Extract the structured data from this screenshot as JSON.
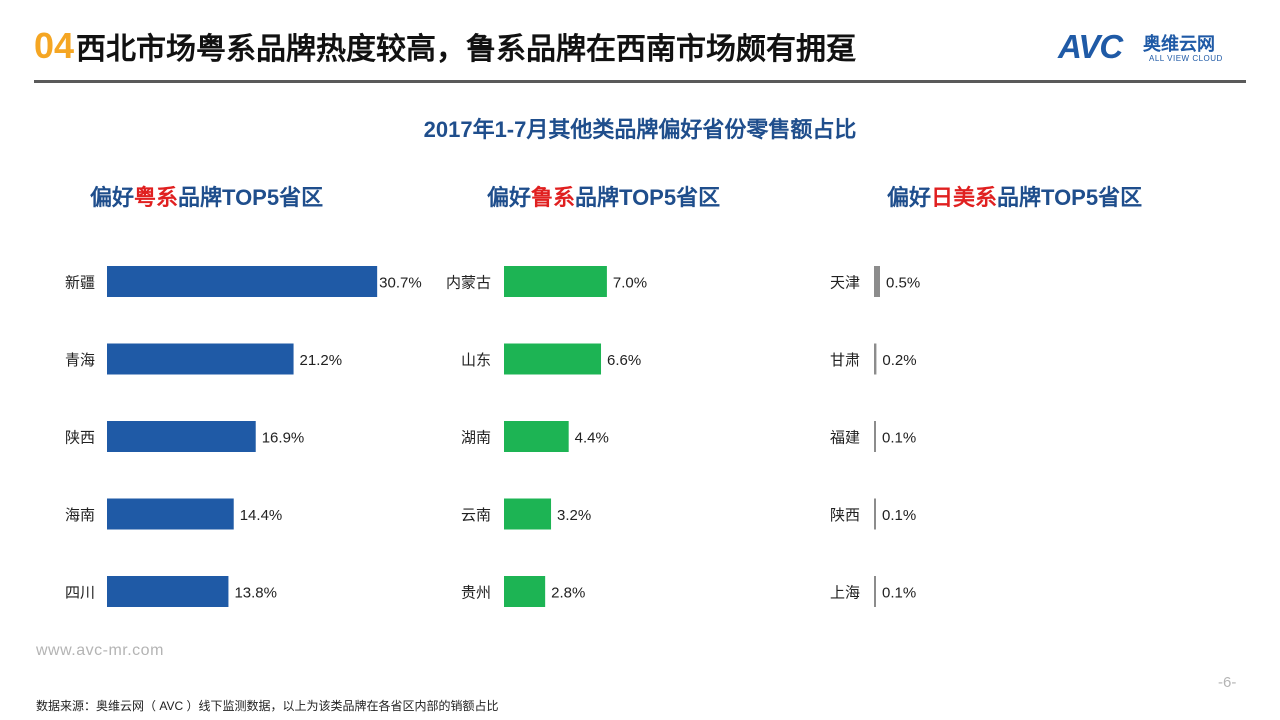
{
  "header": {
    "number": "04",
    "title": "西北市场粤系品牌热度较高，鲁系品牌在西南市场颇有拥趸"
  },
  "logo": {
    "brand": "AVC",
    "cn": "奥维云网",
    "en": "ALL VIEW CLOUD"
  },
  "colors": {
    "blue": "#1f4e8c",
    "green": "#1db454",
    "gray": "#8c8c8c",
    "highlight": "#e02020",
    "accent": "#f5a623"
  },
  "panels": [
    {
      "prefix": "偏好",
      "highlight": "粤系",
      "suffix": "品牌TOP5省区"
    },
    {
      "prefix": "偏好",
      "highlight": "鲁系",
      "suffix": "品牌TOP5省区"
    },
    {
      "prefix": "偏好",
      "highlight": "日美系",
      "suffix": "品牌TOP5省区"
    }
  ],
  "chart_data": {
    "title": "2017年1-7月其他类品牌偏好省份零售额占比",
    "charts": [
      {
        "type": "bar",
        "orientation": "horizontal",
        "title": "偏好粤系品牌TOP5省区",
        "categories": [
          "新疆",
          "青海",
          "陕西",
          "海南",
          "四川"
        ],
        "values": [
          30.7,
          21.2,
          16.9,
          14.4,
          13.8
        ],
        "labels": [
          "30.7%",
          "21.2%",
          "16.9%",
          "14.4%",
          "13.8%"
        ],
        "unit": "%",
        "color": "#1f5aa6"
      },
      {
        "type": "bar",
        "orientation": "horizontal",
        "title": "偏好鲁系品牌TOP5省区",
        "categories": [
          "内蒙古",
          "山东",
          "湖南",
          "云南",
          "贵州"
        ],
        "values": [
          7.0,
          6.6,
          4.4,
          3.2,
          2.8
        ],
        "labels": [
          "7.0%",
          "6.6%",
          "4.4%",
          "3.2%",
          "2.8%"
        ],
        "unit": "%",
        "color": "#1db454"
      },
      {
        "type": "bar",
        "orientation": "horizontal",
        "title": "偏好日美系品牌TOP5省区",
        "categories": [
          "天津",
          "甘肃",
          "福建",
          "陕西",
          "上海"
        ],
        "values": [
          0.5,
          0.2,
          0.1,
          0.1,
          0.1
        ],
        "labels": [
          "0.5%",
          "0.2%",
          "0.1%",
          "0.1%",
          "0.1%"
        ],
        "unit": "%",
        "color": "#8c8c8c"
      }
    ]
  },
  "footer": {
    "url": "www.avc-mr.com",
    "source": "数据来源：奥维云网（ AVC ）线下监测数据，以上为该类品牌在各省区内部的销额占比",
    "page": "-6-"
  }
}
